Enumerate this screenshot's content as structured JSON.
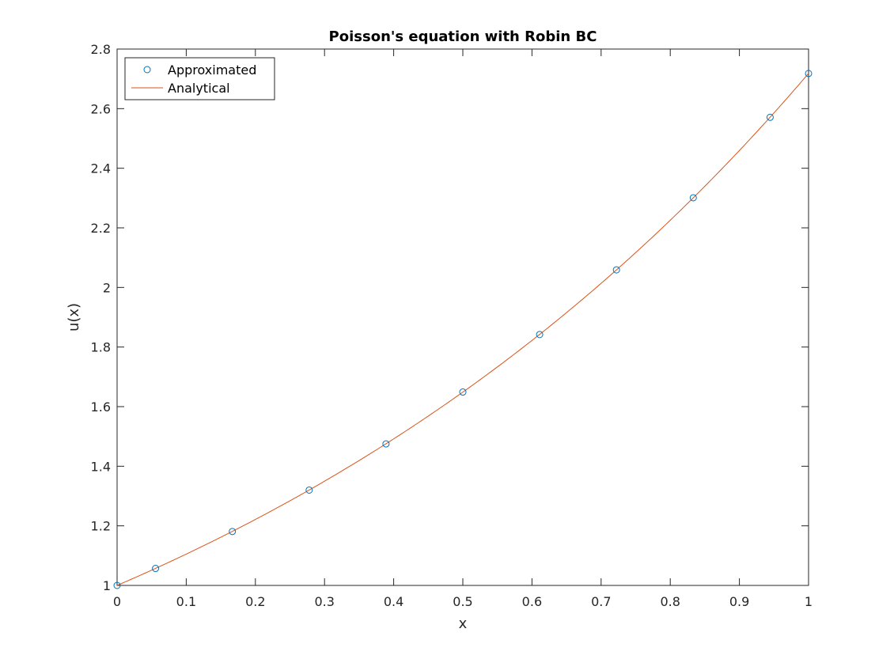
{
  "chart_data": {
    "type": "line",
    "title": "Poisson's equation with Robin BC",
    "xlabel": "x",
    "ylabel": "u(x)",
    "xlim": [
      0,
      1
    ],
    "ylim": [
      1,
      2.8
    ],
    "xticks": [
      0,
      0.1,
      0.2,
      0.3,
      0.4,
      0.5,
      0.6,
      0.7,
      0.8,
      0.9,
      1
    ],
    "xtick_labels": [
      "0",
      "0.1",
      "0.2",
      "0.3",
      "0.4",
      "0.5",
      "0.6",
      "0.7",
      "0.8",
      "0.9",
      "1"
    ],
    "yticks": [
      1,
      1.2,
      1.4,
      1.6,
      1.8,
      2,
      2.2,
      2.4,
      2.6,
      2.8
    ],
    "ytick_labels": [
      "1",
      "1.2",
      "1.4",
      "1.6",
      "1.8",
      "2",
      "2.2",
      "2.4",
      "2.6",
      "2.8"
    ],
    "grid": false,
    "legend_position": "top-left",
    "series": [
      {
        "name": "Approximated",
        "style": "markers",
        "marker": "circle",
        "color": "#0072bd",
        "x": [
          0,
          0.0556,
          0.1667,
          0.2778,
          0.3889,
          0.5,
          0.6111,
          0.7222,
          0.8333,
          0.9444,
          1
        ],
        "y": [
          1.0,
          1.057,
          1.181,
          1.32,
          1.475,
          1.649,
          1.842,
          2.059,
          2.301,
          2.571,
          2.718
        ]
      },
      {
        "name": "Analytical",
        "style": "line",
        "function": "exp(x)",
        "color": "#d95319",
        "x": [
          0,
          0.1,
          0.2,
          0.3,
          0.4,
          0.5,
          0.6,
          0.7,
          0.8,
          0.9,
          1
        ],
        "y": [
          1.0,
          1.105,
          1.221,
          1.35,
          1.492,
          1.649,
          1.822,
          2.014,
          2.226,
          2.46,
          2.718
        ]
      }
    ]
  }
}
